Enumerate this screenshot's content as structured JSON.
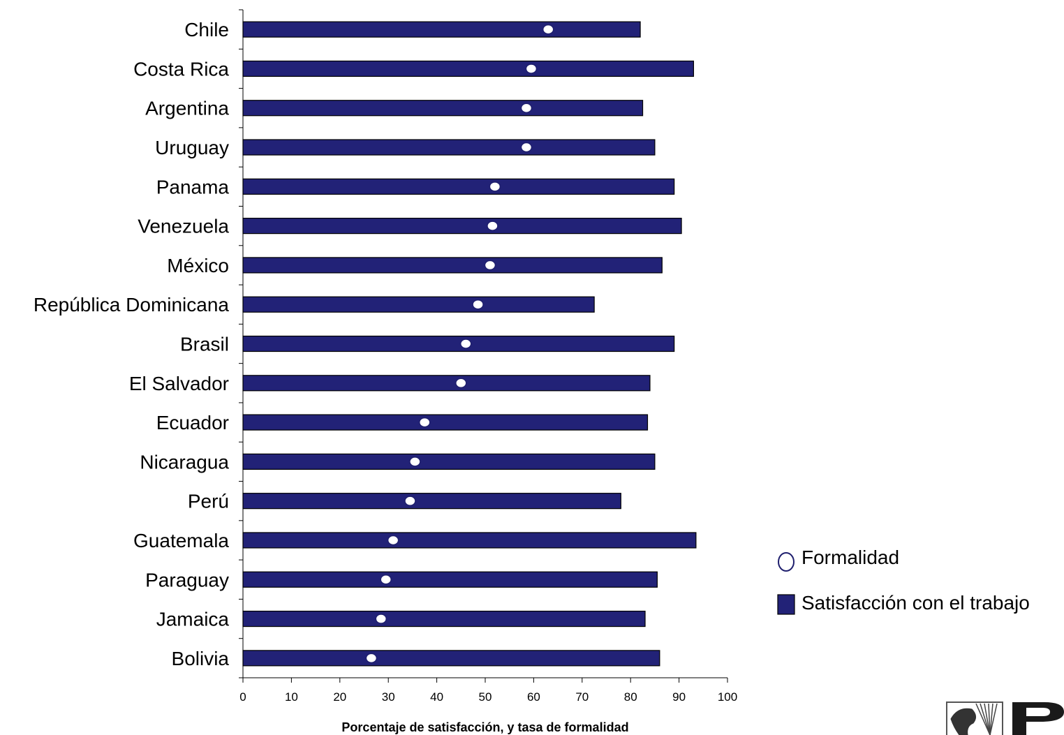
{
  "colors": {
    "bar_fill": "#222277",
    "bar_stroke": "#000000",
    "marker_fill": "#ffffff",
    "marker_stroke": "#1f1f6e",
    "axis": "#000000"
  },
  "chart_data": {
    "type": "bar",
    "orientation": "horizontal",
    "categories": [
      "Chile",
      "Costa Rica",
      "Argentina",
      "Uruguay",
      "Panama",
      "Venezuela",
      "México",
      "República Dominicana",
      "Brasil",
      "El Salvador",
      "Ecuador",
      "Nicaragua",
      "Perú",
      "Guatemala",
      "Paraguay",
      "Jamaica",
      "Bolivia"
    ],
    "series": [
      {
        "name": "Satisfacción con el trabajo",
        "kind": "bar",
        "values": [
          82,
          93,
          82.5,
          85,
          89,
          90.5,
          86.5,
          72.5,
          89,
          84,
          83.5,
          85,
          78,
          93.5,
          85.5,
          83,
          86
        ]
      },
      {
        "name": "Formalidad",
        "kind": "marker",
        "values": [
          63,
          59.5,
          58.5,
          58.5,
          52,
          51.5,
          51,
          48.5,
          46,
          45,
          37.5,
          35.5,
          34.5,
          31,
          29.5,
          28.5,
          26.5
        ]
      }
    ],
    "xlabel": "Porcentaje de satisfacción, y tasa de formalidad",
    "ylabel": "",
    "xlim": [
      0,
      100
    ],
    "xticks": [
      0,
      10,
      20,
      30,
      40,
      50,
      60,
      70,
      80,
      90,
      100
    ],
    "grid": false,
    "legend_placement": "right-bottom"
  }
}
